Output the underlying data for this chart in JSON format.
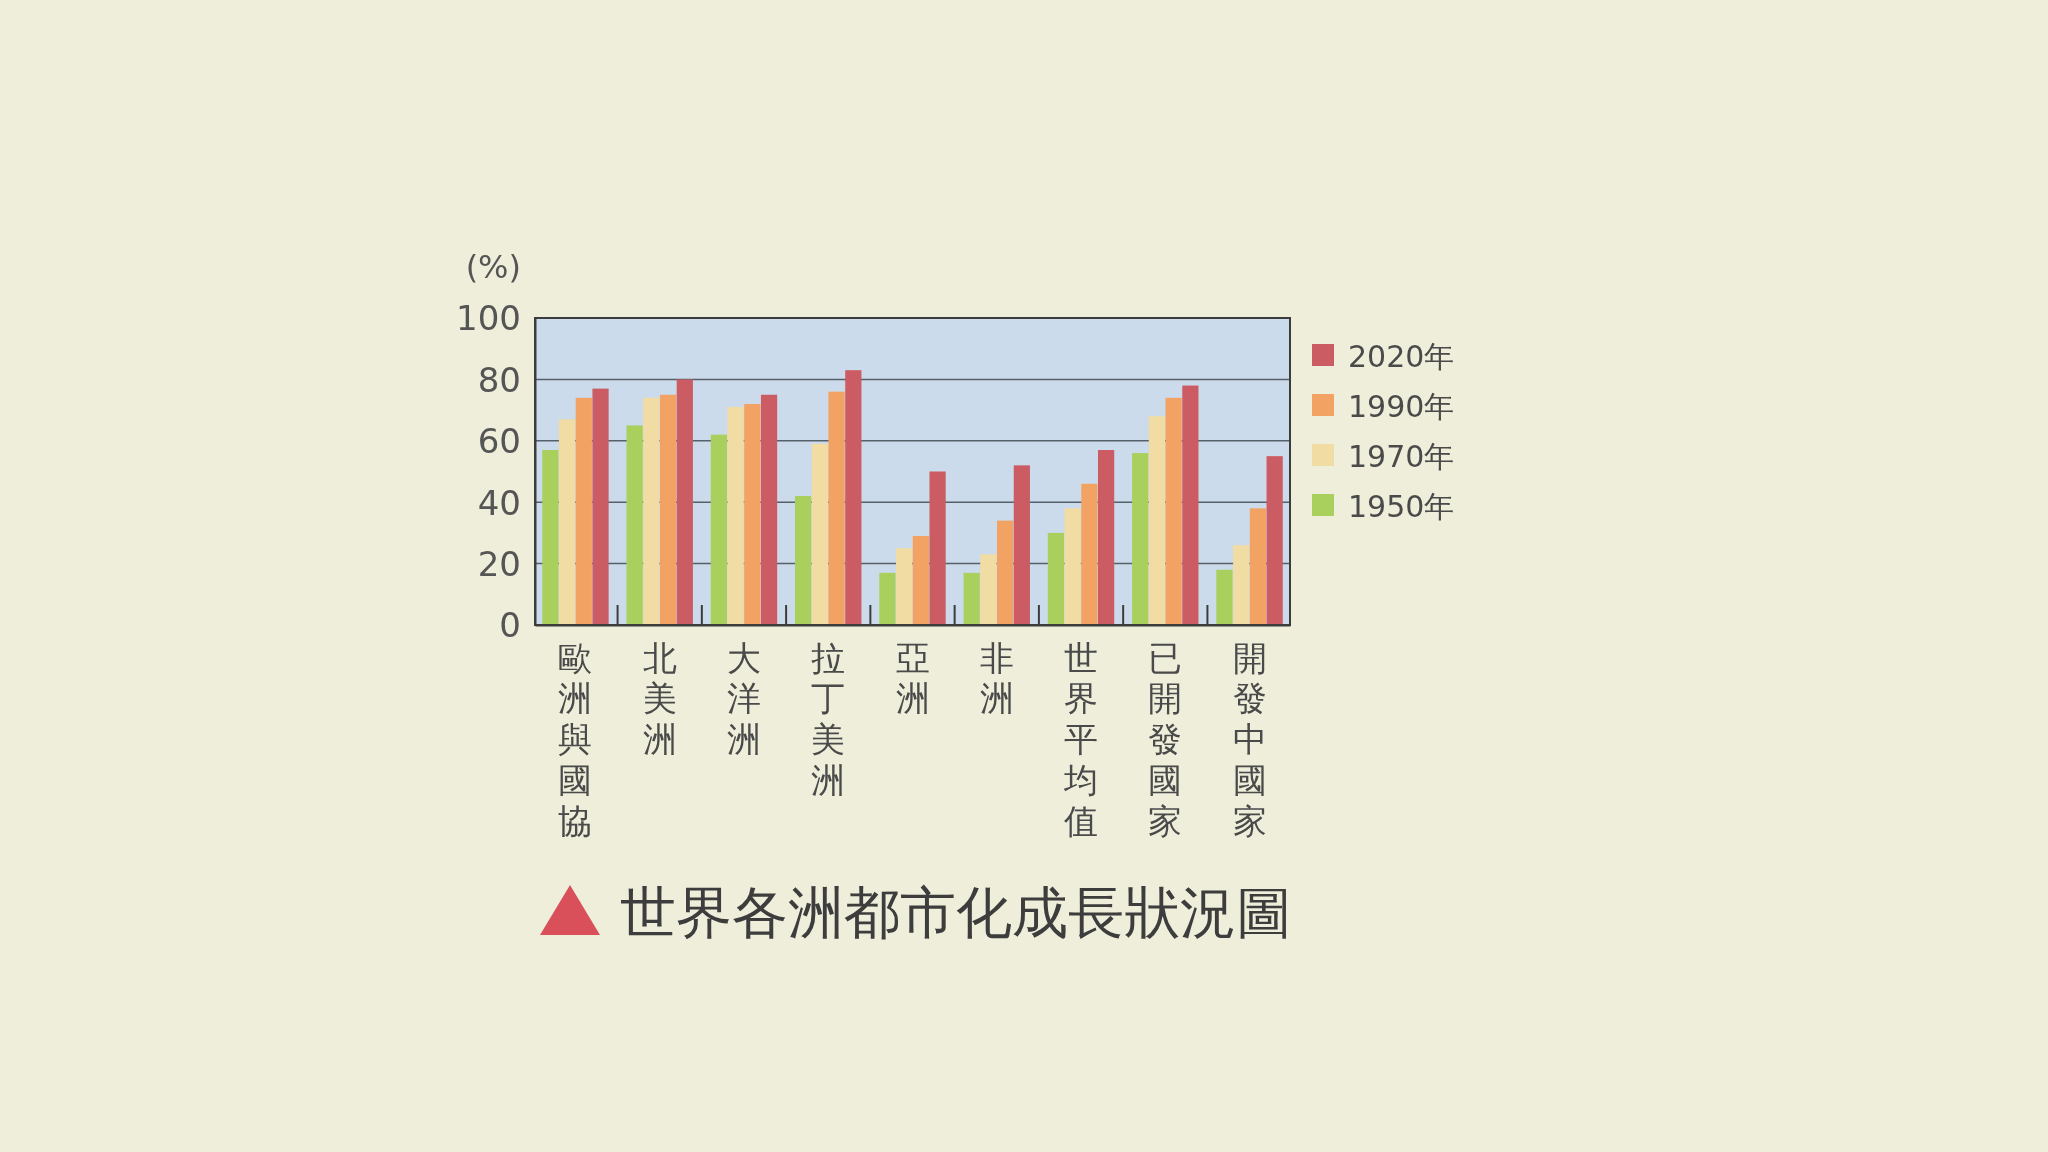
{
  "chart_data": {
    "type": "bar",
    "title": "世界各洲都市化成長狀況圖",
    "ylabel": "(%)",
    "categories": [
      "歐洲與國協",
      "北美洲",
      "大洋洲",
      "拉丁美洲",
      "亞洲",
      "非洲",
      "世界平均值",
      "已開發國家",
      "開發中國家"
    ],
    "series": [
      {
        "name": "1950年",
        "color": "#a9cf5c",
        "values": [
          57,
          65,
          62,
          42,
          17,
          17,
          30,
          56,
          18
        ]
      },
      {
        "name": "1970年",
        "color": "#f1dca3",
        "values": [
          67,
          74,
          71,
          59,
          25,
          23,
          38,
          68,
          26
        ]
      },
      {
        "name": "1990年",
        "color": "#f2a262",
        "values": [
          74,
          75,
          72,
          76,
          29,
          34,
          46,
          74,
          38
        ]
      },
      {
        "name": "2020年",
        "color": "#cc5c63",
        "values": [
          77,
          80,
          75,
          83,
          50,
          52,
          57,
          78,
          55
        ]
      }
    ],
    "ylim": [
      0,
      100
    ],
    "yticks": [
      0,
      20,
      40,
      60,
      80,
      100
    ],
    "grid": "y",
    "legend": "right"
  }
}
